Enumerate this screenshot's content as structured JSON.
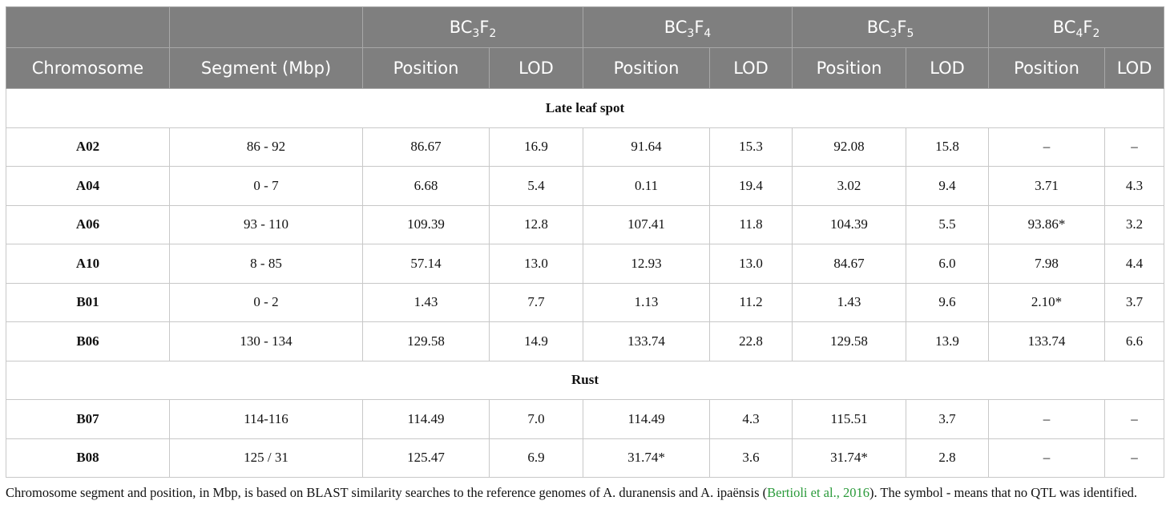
{
  "table": {
    "groups": [
      [
        "BC",
        "3",
        "F",
        "2"
      ],
      [
        "BC",
        "3",
        "F",
        "4"
      ],
      [
        "BC",
        "3",
        "F",
        "5"
      ],
      [
        "BC",
        "4",
        "F",
        "2"
      ]
    ],
    "columns": [
      "Chromosome",
      "Segment (Mbp)",
      "Position",
      "LOD",
      "Position",
      "LOD",
      "Position",
      "LOD",
      "Position",
      "LOD"
    ],
    "sections": [
      {
        "title": "Late leaf spot",
        "rows": [
          [
            "A02",
            "86 - 92",
            "86.67",
            "16.9",
            "91.64",
            "15.3",
            "92.08",
            "15.8",
            "–",
            "–"
          ],
          [
            "A04",
            "0 - 7",
            "6.68",
            "5.4",
            "0.11",
            "19.4",
            "3.02",
            "9.4",
            "3.71",
            "4.3"
          ],
          [
            "A06",
            "93 - 110",
            "109.39",
            "12.8",
            "107.41",
            "11.8",
            "104.39",
            "5.5",
            "93.86*",
            "3.2"
          ],
          [
            "A10",
            "8 - 85",
            "57.14",
            "13.0",
            "12.93",
            "13.0",
            "84.67",
            "6.0",
            "7.98",
            "4.4"
          ],
          [
            "B01",
            "0 - 2",
            "1.43",
            "7.7",
            "1.13",
            "11.2",
            "1.43",
            "9.6",
            "2.10*",
            "3.7"
          ],
          [
            "B06",
            "130 - 134",
            "129.58",
            "14.9",
            "133.74",
            "22.8",
            "129.58",
            "13.9",
            "133.74",
            "6.6"
          ]
        ]
      },
      {
        "title": "Rust",
        "rows": [
          [
            "B07",
            "114-116",
            "114.49",
            "7.0",
            "114.49",
            "4.3",
            "115.51",
            "3.7",
            "–",
            "–"
          ],
          [
            "B08",
            "125 / 31",
            "125.47",
            "6.9",
            "31.74*",
            "3.6",
            "31.74*",
            "2.8",
            "–",
            "–"
          ]
        ]
      }
    ]
  },
  "caption": {
    "before": "Chromosome segment and position, in Mbp, is based on BLAST similarity searches to the reference genomes of A. duranensis and A. ipaënsis (",
    "link": "Bertioli et al., 2016",
    "after": "). The symbol - means that no QTL was identified."
  }
}
